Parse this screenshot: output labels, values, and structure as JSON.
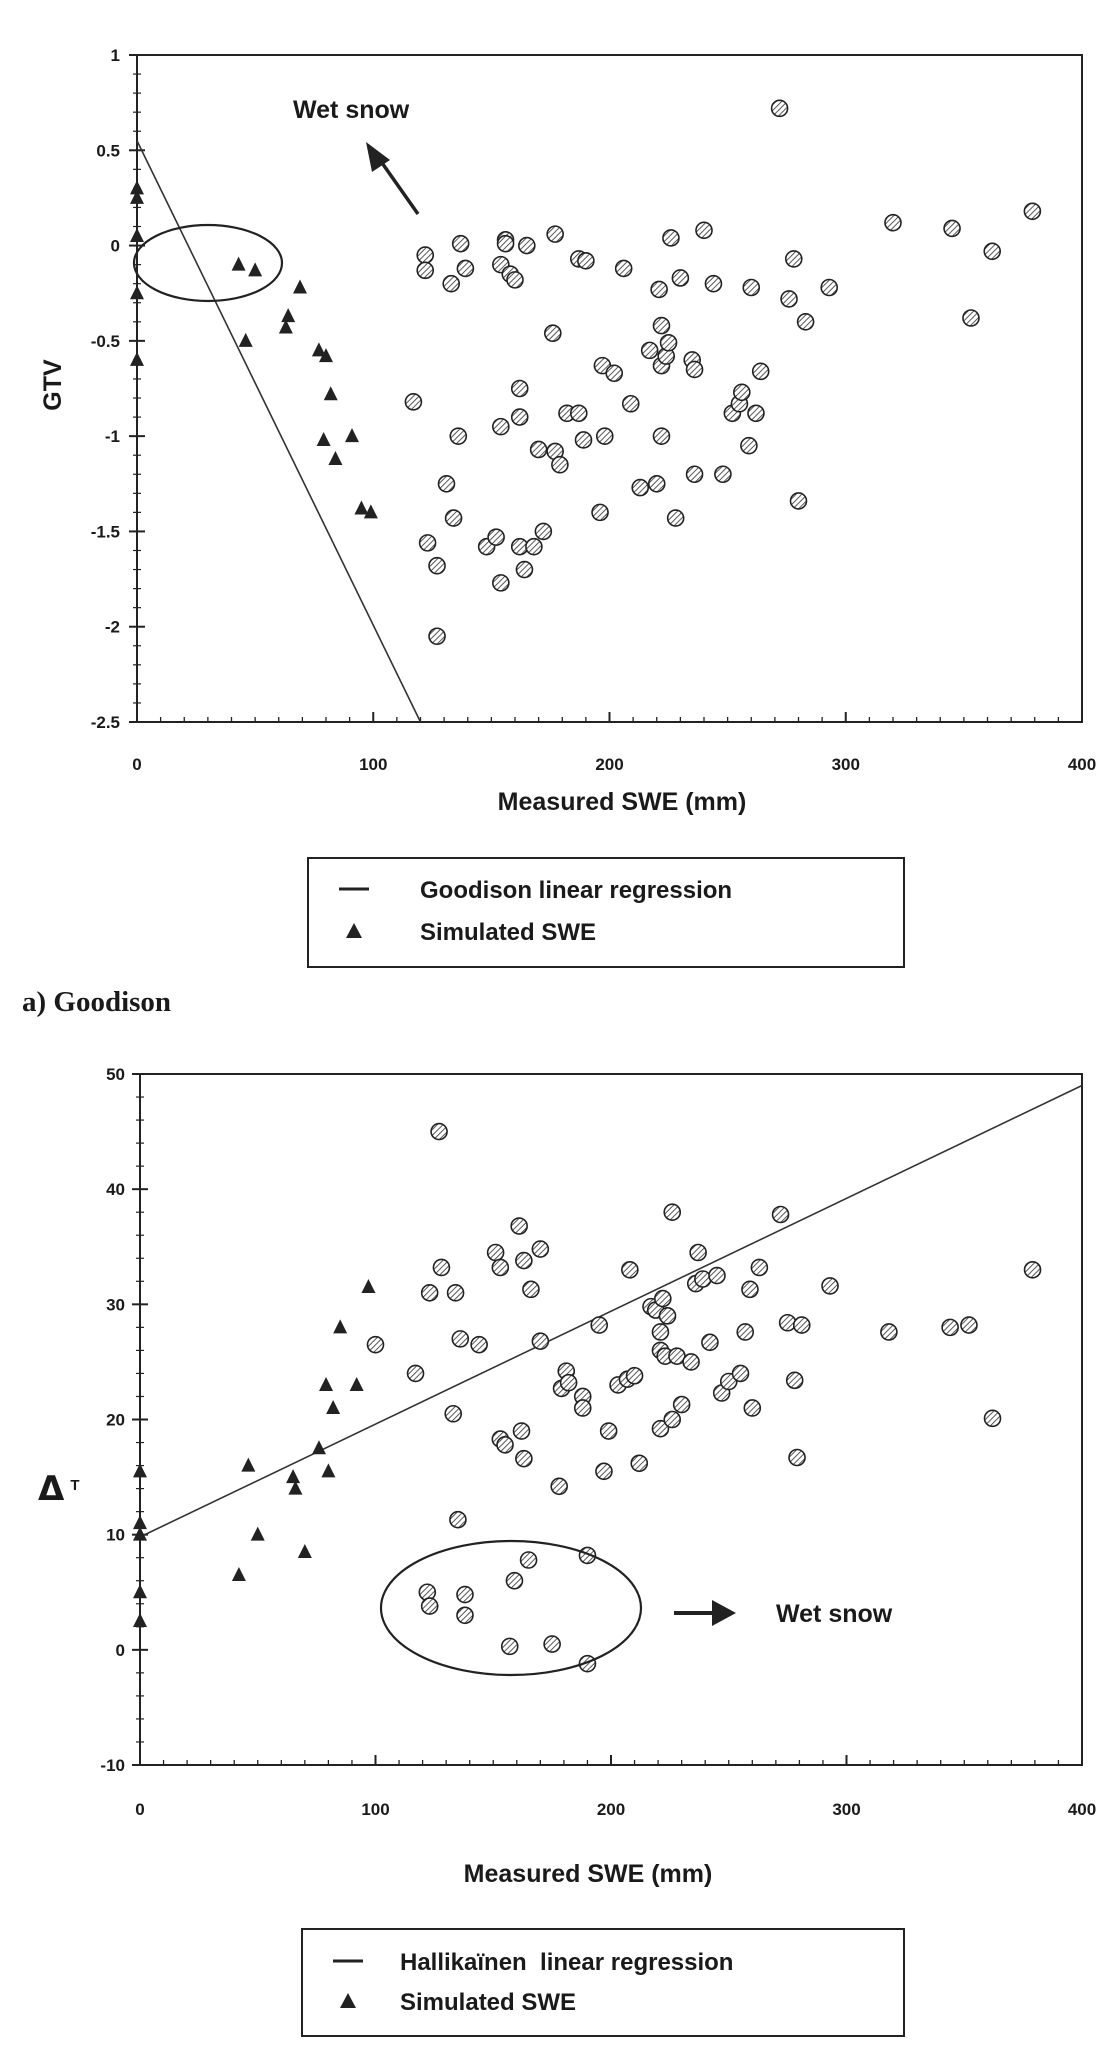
{
  "chart_data": [
    {
      "type": "scatter",
      "caption": "a) Goodison",
      "xlabel": "Measured SWE (mm)",
      "ylabel": "GTV",
      "xlim": [
        0,
        400
      ],
      "ylim": [
        -2.5,
        1
      ],
      "xticks": [
        "0",
        "100",
        "200",
        "300",
        "400"
      ],
      "yticks": [
        "1",
        "0.5",
        "0",
        "-0.5",
        "-1",
        "-1.5",
        "-2",
        "-2.5"
      ],
      "annotation": "Wet snow",
      "legend": {
        "placement": "below",
        "entries": [
          {
            "symbol": "line",
            "label": "Goodison linear regression"
          },
          {
            "symbol": "triangle",
            "label": "Simulated SWE"
          }
        ]
      },
      "regression": {
        "x": [
          0,
          120
        ],
        "y": [
          0.55,
          -2.5
        ]
      },
      "simulated": [
        [
          0,
          0.3
        ],
        [
          0,
          0.25
        ],
        [
          0,
          0.05
        ],
        [
          0,
          -0.25
        ],
        [
          0,
          -0.6
        ],
        [
          43,
          -0.1
        ],
        [
          50,
          -0.13
        ],
        [
          46,
          -0.5
        ],
        [
          64,
          -0.37
        ],
        [
          63,
          -0.43
        ],
        [
          69,
          -0.22
        ],
        [
          77,
          -0.55
        ],
        [
          80,
          -0.58
        ],
        [
          82,
          -0.78
        ],
        [
          79,
          -1.02
        ],
        [
          84,
          -1.12
        ],
        [
          91,
          -1.0
        ],
        [
          95,
          -1.38
        ],
        [
          99,
          -1.4
        ]
      ],
      "measured": [
        [
          117,
          -0.82
        ],
        [
          123,
          -1.56
        ],
        [
          127,
          -1.68
        ],
        [
          127,
          -2.05
        ],
        [
          131,
          -1.25
        ],
        [
          134,
          -1.43
        ],
        [
          136,
          -1.0
        ],
        [
          122,
          -0.05
        ],
        [
          122,
          -0.13
        ],
        [
          133,
          -0.2
        ],
        [
          137,
          0.01
        ],
        [
          139,
          -0.12
        ],
        [
          148,
          -1.58
        ],
        [
          152,
          -1.53
        ],
        [
          154,
          -1.77
        ],
        [
          154,
          -0.95
        ],
        [
          154,
          -0.1
        ],
        [
          156,
          0.03
        ],
        [
          156,
          0.01
        ],
        [
          158,
          -0.15
        ],
        [
          160,
          -0.18
        ],
        [
          162,
          -0.75
        ],
        [
          162,
          -0.9
        ],
        [
          162,
          -1.58
        ],
        [
          164,
          -1.7
        ],
        [
          165,
          0.0
        ],
        [
          168,
          -1.58
        ],
        [
          170,
          -1.07
        ],
        [
          172,
          -1.5
        ],
        [
          177,
          0.06
        ],
        [
          176,
          -0.46
        ],
        [
          177,
          -1.08
        ],
        [
          179,
          -1.15
        ],
        [
          182,
          -0.88
        ],
        [
          187,
          -0.88
        ],
        [
          187,
          -0.07
        ],
        [
          189,
          -1.02
        ],
        [
          190,
          -0.08
        ],
        [
          196,
          -1.4
        ],
        [
          197,
          -0.63
        ],
        [
          198,
          -1.0
        ],
        [
          202,
          -0.67
        ],
        [
          206,
          -0.12
        ],
        [
          209,
          -0.83
        ],
        [
          213,
          -1.27
        ],
        [
          217,
          -0.55
        ],
        [
          220,
          -1.25
        ],
        [
          221,
          -0.23
        ],
        [
          222,
          -0.42
        ],
        [
          222,
          -0.63
        ],
        [
          222,
          -1.0
        ],
        [
          224,
          -0.58
        ],
        [
          225,
          -0.51
        ],
        [
          226,
          0.04
        ],
        [
          228,
          -1.43
        ],
        [
          230,
          -0.17
        ],
        [
          235,
          -0.6
        ],
        [
          236,
          -0.65
        ],
        [
          236,
          -1.2
        ],
        [
          240,
          0.08
        ],
        [
          244,
          -0.2
        ],
        [
          248,
          -1.2
        ],
        [
          252,
          -0.88
        ],
        [
          255,
          -0.83
        ],
        [
          256,
          -0.77
        ],
        [
          259,
          -1.05
        ],
        [
          260,
          -0.22
        ],
        [
          262,
          -0.88
        ],
        [
          264,
          -0.66
        ],
        [
          272,
          0.72
        ],
        [
          276,
          -0.28
        ],
        [
          278,
          -0.07
        ],
        [
          280,
          -1.34
        ],
        [
          283,
          -0.4
        ],
        [
          293,
          -0.22
        ],
        [
          320,
          0.12
        ],
        [
          345,
          0.09
        ],
        [
          353,
          -0.38
        ],
        [
          362,
          -0.03
        ],
        [
          379,
          0.18
        ]
      ]
    },
    {
      "type": "scatter",
      "caption": "",
      "xlabel": "Measured SWE (mm)",
      "ylabel": "Δ",
      "ylabel_sub": "T",
      "xlim": [
        0,
        400
      ],
      "ylim": [
        -10,
        50
      ],
      "xticks": [
        "0",
        "100",
        "200",
        "300",
        "400"
      ],
      "yticks": [
        "50",
        "40",
        "30",
        "20",
        "10",
        "0",
        "-10"
      ],
      "annotation": "Wet snow",
      "legend": {
        "placement": "below",
        "entries": [
          {
            "symbol": "line",
            "label": "Hallikaïnen  linear regression"
          },
          {
            "symbol": "triangle",
            "label": "Simulated SWE"
          }
        ]
      },
      "regression": {
        "x": [
          0,
          400
        ],
        "y": [
          9.8,
          49
        ]
      },
      "simulated": [
        [
          0,
          15.5
        ],
        [
          0,
          11
        ],
        [
          0,
          10
        ],
        [
          0,
          5
        ],
        [
          0,
          2.5
        ],
        [
          42,
          6.5
        ],
        [
          46,
          16
        ],
        [
          50,
          10
        ],
        [
          65,
          15
        ],
        [
          66,
          14
        ],
        [
          70,
          8.5
        ],
        [
          76,
          17.5
        ],
        [
          79,
          23
        ],
        [
          80,
          15.5
        ],
        [
          82,
          21
        ],
        [
          85,
          28
        ],
        [
          92,
          23
        ],
        [
          97,
          31.5
        ]
      ],
      "measured": [
        [
          100,
          26.5
        ],
        [
          117,
          24
        ],
        [
          123,
          31
        ],
        [
          122,
          5
        ],
        [
          123,
          3.8
        ],
        [
          127,
          45
        ],
        [
          128,
          33.2
        ],
        [
          133,
          20.5
        ],
        [
          135,
          11.3
        ],
        [
          134,
          31
        ],
        [
          136,
          27
        ],
        [
          138,
          4.8
        ],
        [
          138,
          3
        ],
        [
          144,
          26.5
        ],
        [
          151,
          34.5
        ],
        [
          153,
          33.2
        ],
        [
          153,
          18.3
        ],
        [
          155,
          17.8
        ],
        [
          157,
          0.3
        ],
        [
          159,
          6
        ],
        [
          161,
          36.8
        ],
        [
          162,
          19
        ],
        [
          163,
          16.6
        ],
        [
          163,
          33.8
        ],
        [
          165,
          7.8
        ],
        [
          166,
          31.3
        ],
        [
          170,
          34.8
        ],
        [
          170,
          26.8
        ],
        [
          175,
          0.5
        ],
        [
          178,
          14.2
        ],
        [
          179,
          22.7
        ],
        [
          181,
          24.2
        ],
        [
          182,
          23.2
        ],
        [
          188,
          22
        ],
        [
          188,
          21
        ],
        [
          190,
          8.2
        ],
        [
          190,
          -1.2
        ],
        [
          195,
          28.2
        ],
        [
          197,
          15.5
        ],
        [
          199,
          19
        ],
        [
          203,
          23
        ],
        [
          207,
          23.5
        ],
        [
          208,
          33
        ],
        [
          210,
          23.8
        ],
        [
          212,
          16.2
        ],
        [
          217,
          29.8
        ],
        [
          219,
          29.5
        ],
        [
          221,
          26
        ],
        [
          221,
          27.6
        ],
        [
          221,
          19.2
        ],
        [
          222,
          30.5
        ],
        [
          223,
          25.5
        ],
        [
          224,
          29
        ],
        [
          226,
          38
        ],
        [
          226,
          20
        ],
        [
          228,
          25.5
        ],
        [
          230,
          21.3
        ],
        [
          234,
          25
        ],
        [
          236,
          31.8
        ],
        [
          237,
          34.5
        ],
        [
          239,
          32.2
        ],
        [
          242,
          26.7
        ],
        [
          245,
          32.5
        ],
        [
          247,
          22.3
        ],
        [
          250,
          23.3
        ],
        [
          255,
          24
        ],
        [
          257,
          27.6
        ],
        [
          259,
          31.3
        ],
        [
          260,
          21
        ],
        [
          263,
          33.2
        ],
        [
          272,
          37.8
        ],
        [
          275,
          28.4
        ],
        [
          278,
          23.4
        ],
        [
          279,
          16.7
        ],
        [
          281,
          28.2
        ],
        [
          293,
          31.6
        ],
        [
          318,
          27.6
        ],
        [
          344,
          28
        ],
        [
          352,
          28.2
        ],
        [
          362,
          20.1
        ],
        [
          379,
          33
        ]
      ]
    }
  ]
}
